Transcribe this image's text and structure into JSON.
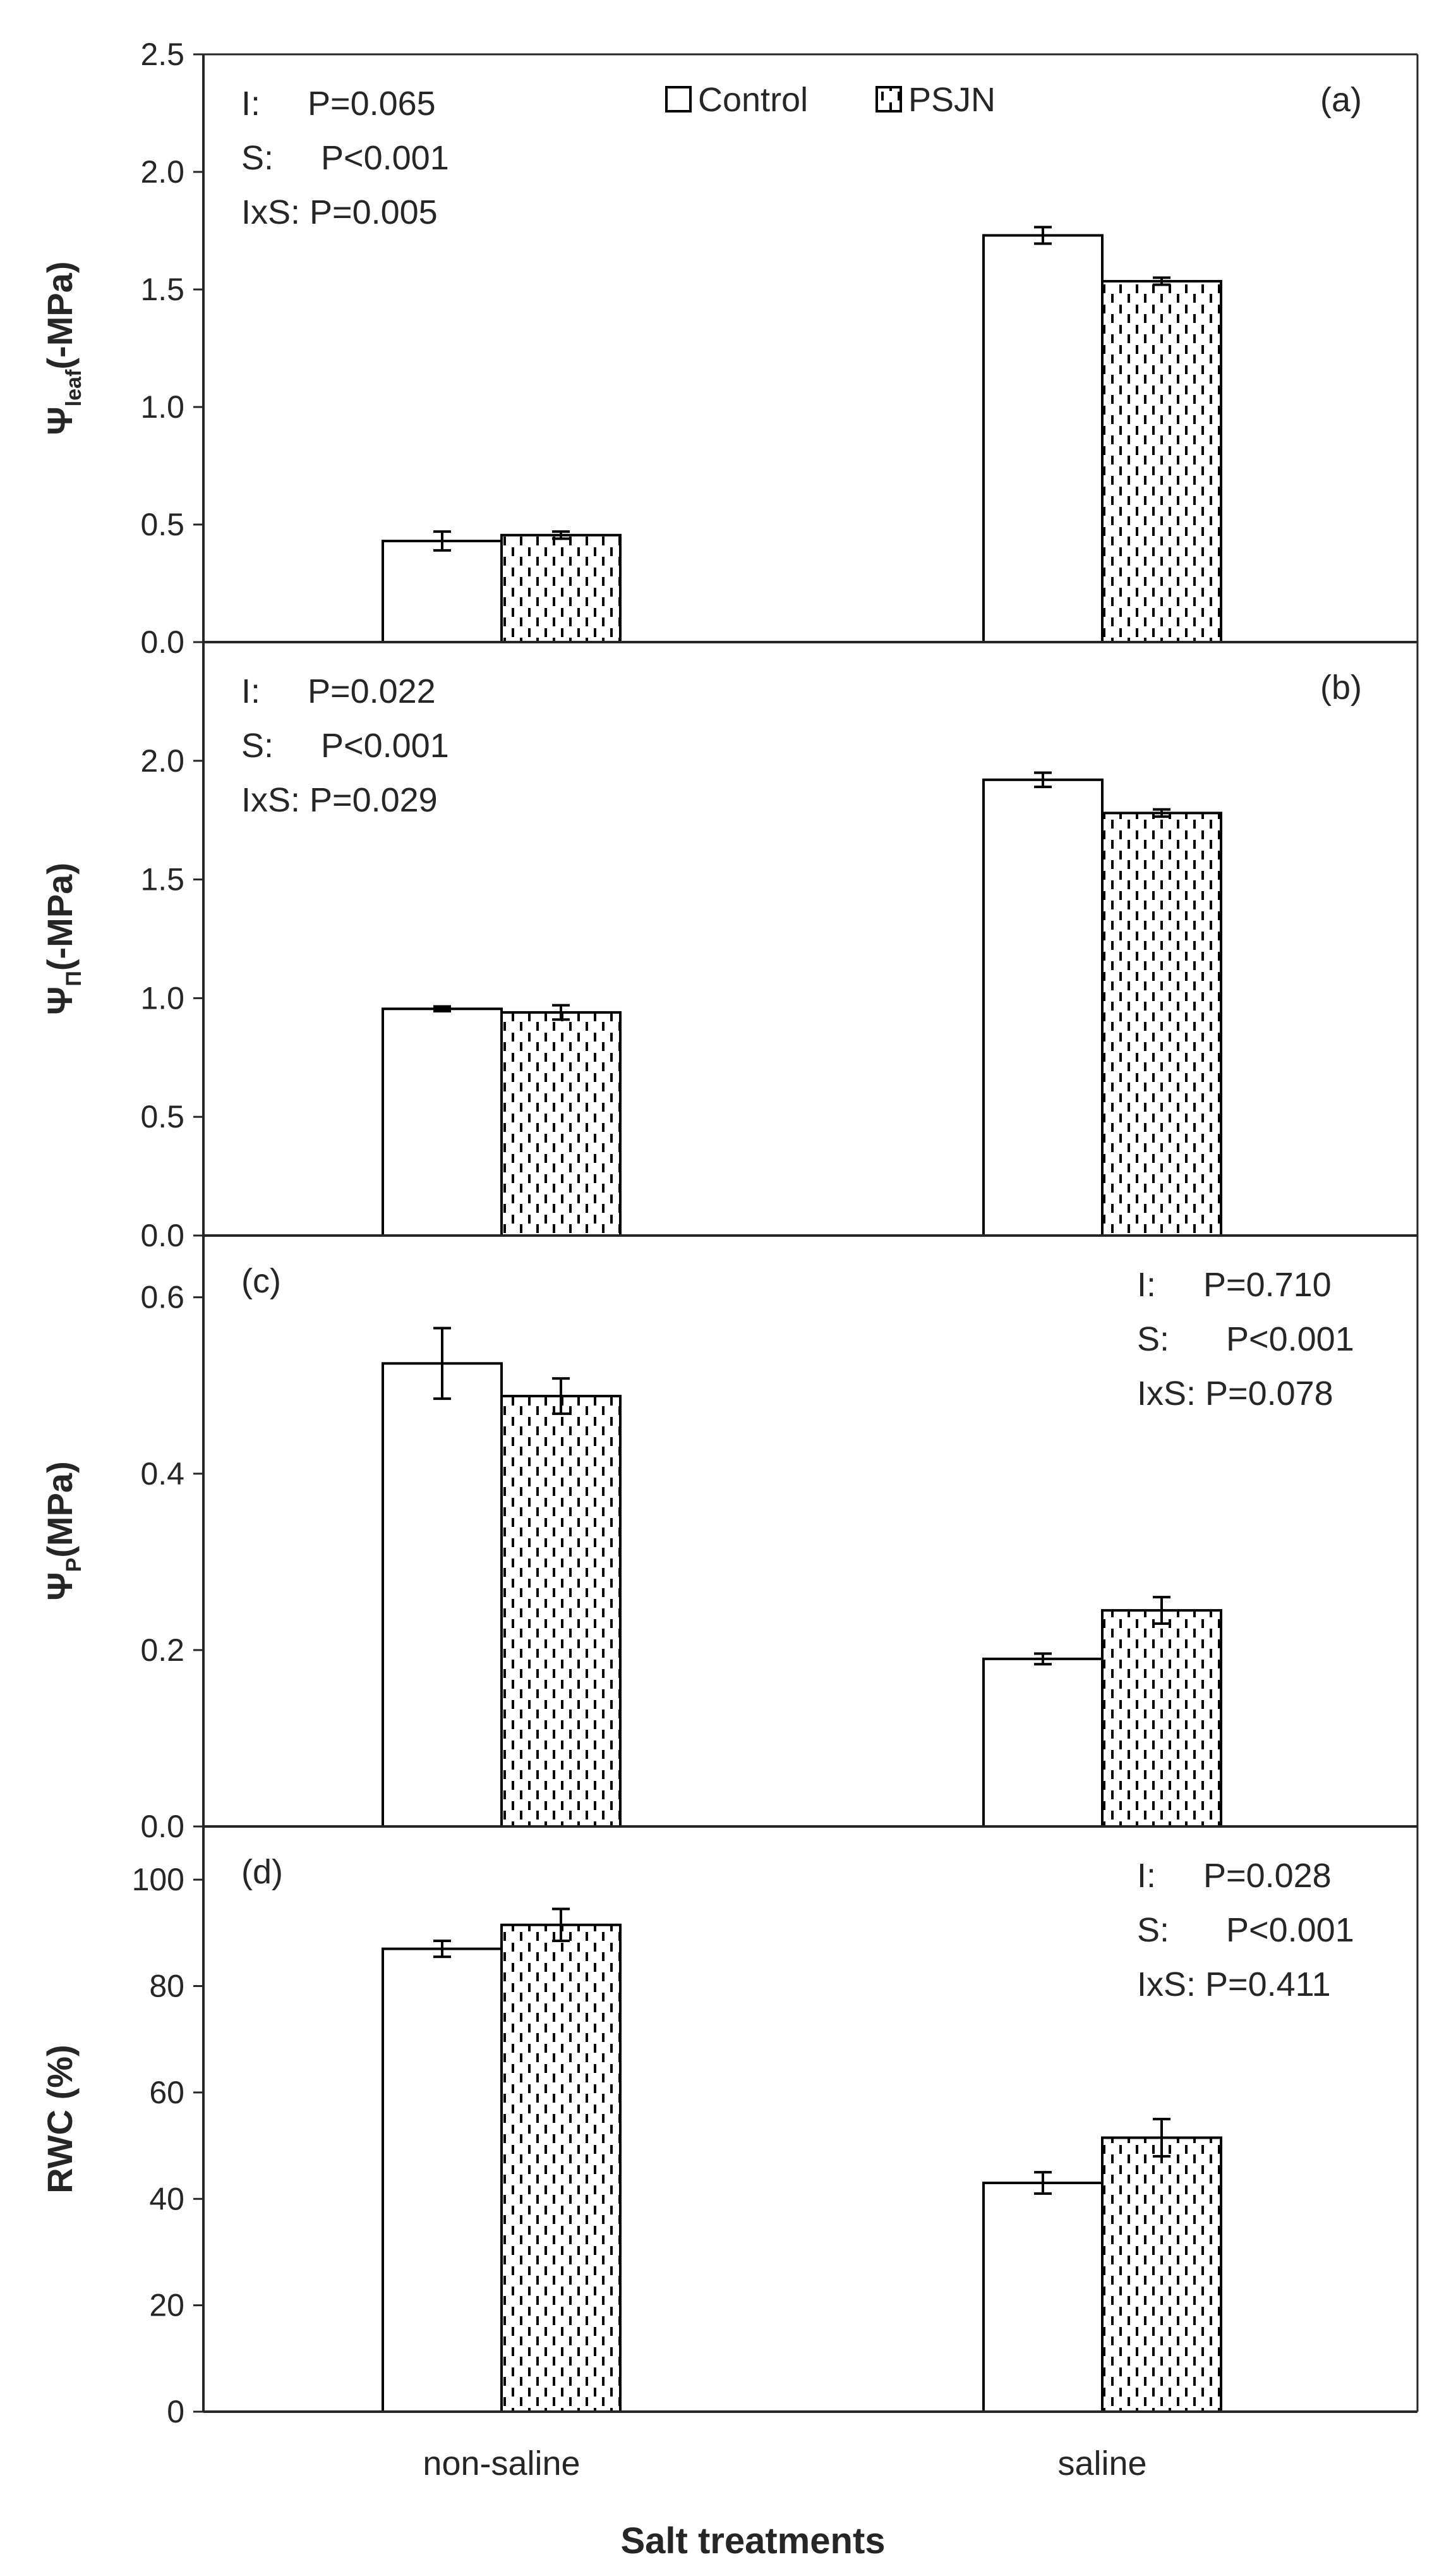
{
  "chart_data": {
    "type": "bar",
    "categories": [
      "non-saline",
      "saline"
    ],
    "xlabel": "Salt treatments",
    "legend": {
      "position": "top-center",
      "entries": [
        "Control",
        "PSJN"
      ]
    },
    "panels": [
      {
        "id": "a",
        "label": "(a)",
        "ylabel": {
          "main": "Ψ",
          "sub": "leaf",
          "tail": "(-MPa)"
        },
        "ylim": [
          0,
          2.5
        ],
        "yticks": [
          "0.0",
          "0.5",
          "1.0",
          "1.5",
          "2.0",
          "2.5"
        ],
        "series": [
          {
            "name": "Control",
            "values": [
              0.43,
              1.73
            ],
            "errors": [
              0.04,
              0.035
            ]
          },
          {
            "name": "PSJN",
            "values": [
              0.455,
              1.535
            ],
            "errors": [
              0.015,
              0.015
            ]
          }
        ],
        "stats": {
          "position": "top-left",
          "lines": [
            "I:     P=0.065",
            "S:     P<0.001",
            "IxS: P=0.005"
          ]
        }
      },
      {
        "id": "b",
        "label": "(b)",
        "ylabel": {
          "main": "Ψ",
          "sub": "Π",
          "tail": "(-MPa)"
        },
        "ylim": [
          0,
          2.5
        ],
        "yticks": [
          "0.0",
          "0.5",
          "1.0",
          "1.5",
          "2.0",
          ""
        ],
        "series": [
          {
            "name": "Control",
            "values": [
              0.955,
              1.92
            ],
            "errors": [
              0.01,
              0.03
            ]
          },
          {
            "name": "PSJN",
            "values": [
              0.94,
              1.78
            ],
            "errors": [
              0.03,
              0.015
            ]
          }
        ],
        "stats": {
          "position": "top-left",
          "lines": [
            "I:     P=0.022",
            "S:     P<0.001",
            "IxS: P=0.029"
          ]
        }
      },
      {
        "id": "c",
        "label": "(c)",
        "ylabel": {
          "main": "Ψ",
          "sub": "P",
          "tail": "(MPa)"
        },
        "ylim": [
          0,
          0.67
        ],
        "yticks": [
          "0.0",
          "0.2",
          "0.4",
          "0.6"
        ],
        "series": [
          {
            "name": "Control",
            "values": [
              0.525,
              0.19
            ],
            "errors": [
              0.04,
              0.006
            ]
          },
          {
            "name": "PSJN",
            "values": [
              0.488,
              0.245
            ],
            "errors": [
              0.02,
              0.015
            ]
          }
        ],
        "stats": {
          "position": "top-right",
          "lines": [
            "I:     P=0.710",
            "S:      P<0.001",
            "IxS: P=0.078"
          ]
        }
      },
      {
        "id": "d",
        "label": "(d)",
        "ylabel": {
          "main": "RWC (%)",
          "sub": "",
          "tail": ""
        },
        "ylim": [
          0,
          110
        ],
        "yticks": [
          "0",
          "20",
          "40",
          "60",
          "80",
          "100"
        ],
        "series": [
          {
            "name": "Control",
            "values": [
              87,
              43
            ],
            "errors": [
              1.5,
              2
            ]
          },
          {
            "name": "PSJN",
            "values": [
              91.5,
              51.5
            ],
            "errors": [
              3,
              3.5
            ]
          }
        ],
        "stats": {
          "position": "top-right",
          "lines": [
            "I:     P=0.028",
            "S:      P<0.001",
            "IxS: P=0.411"
          ]
        }
      }
    ]
  }
}
